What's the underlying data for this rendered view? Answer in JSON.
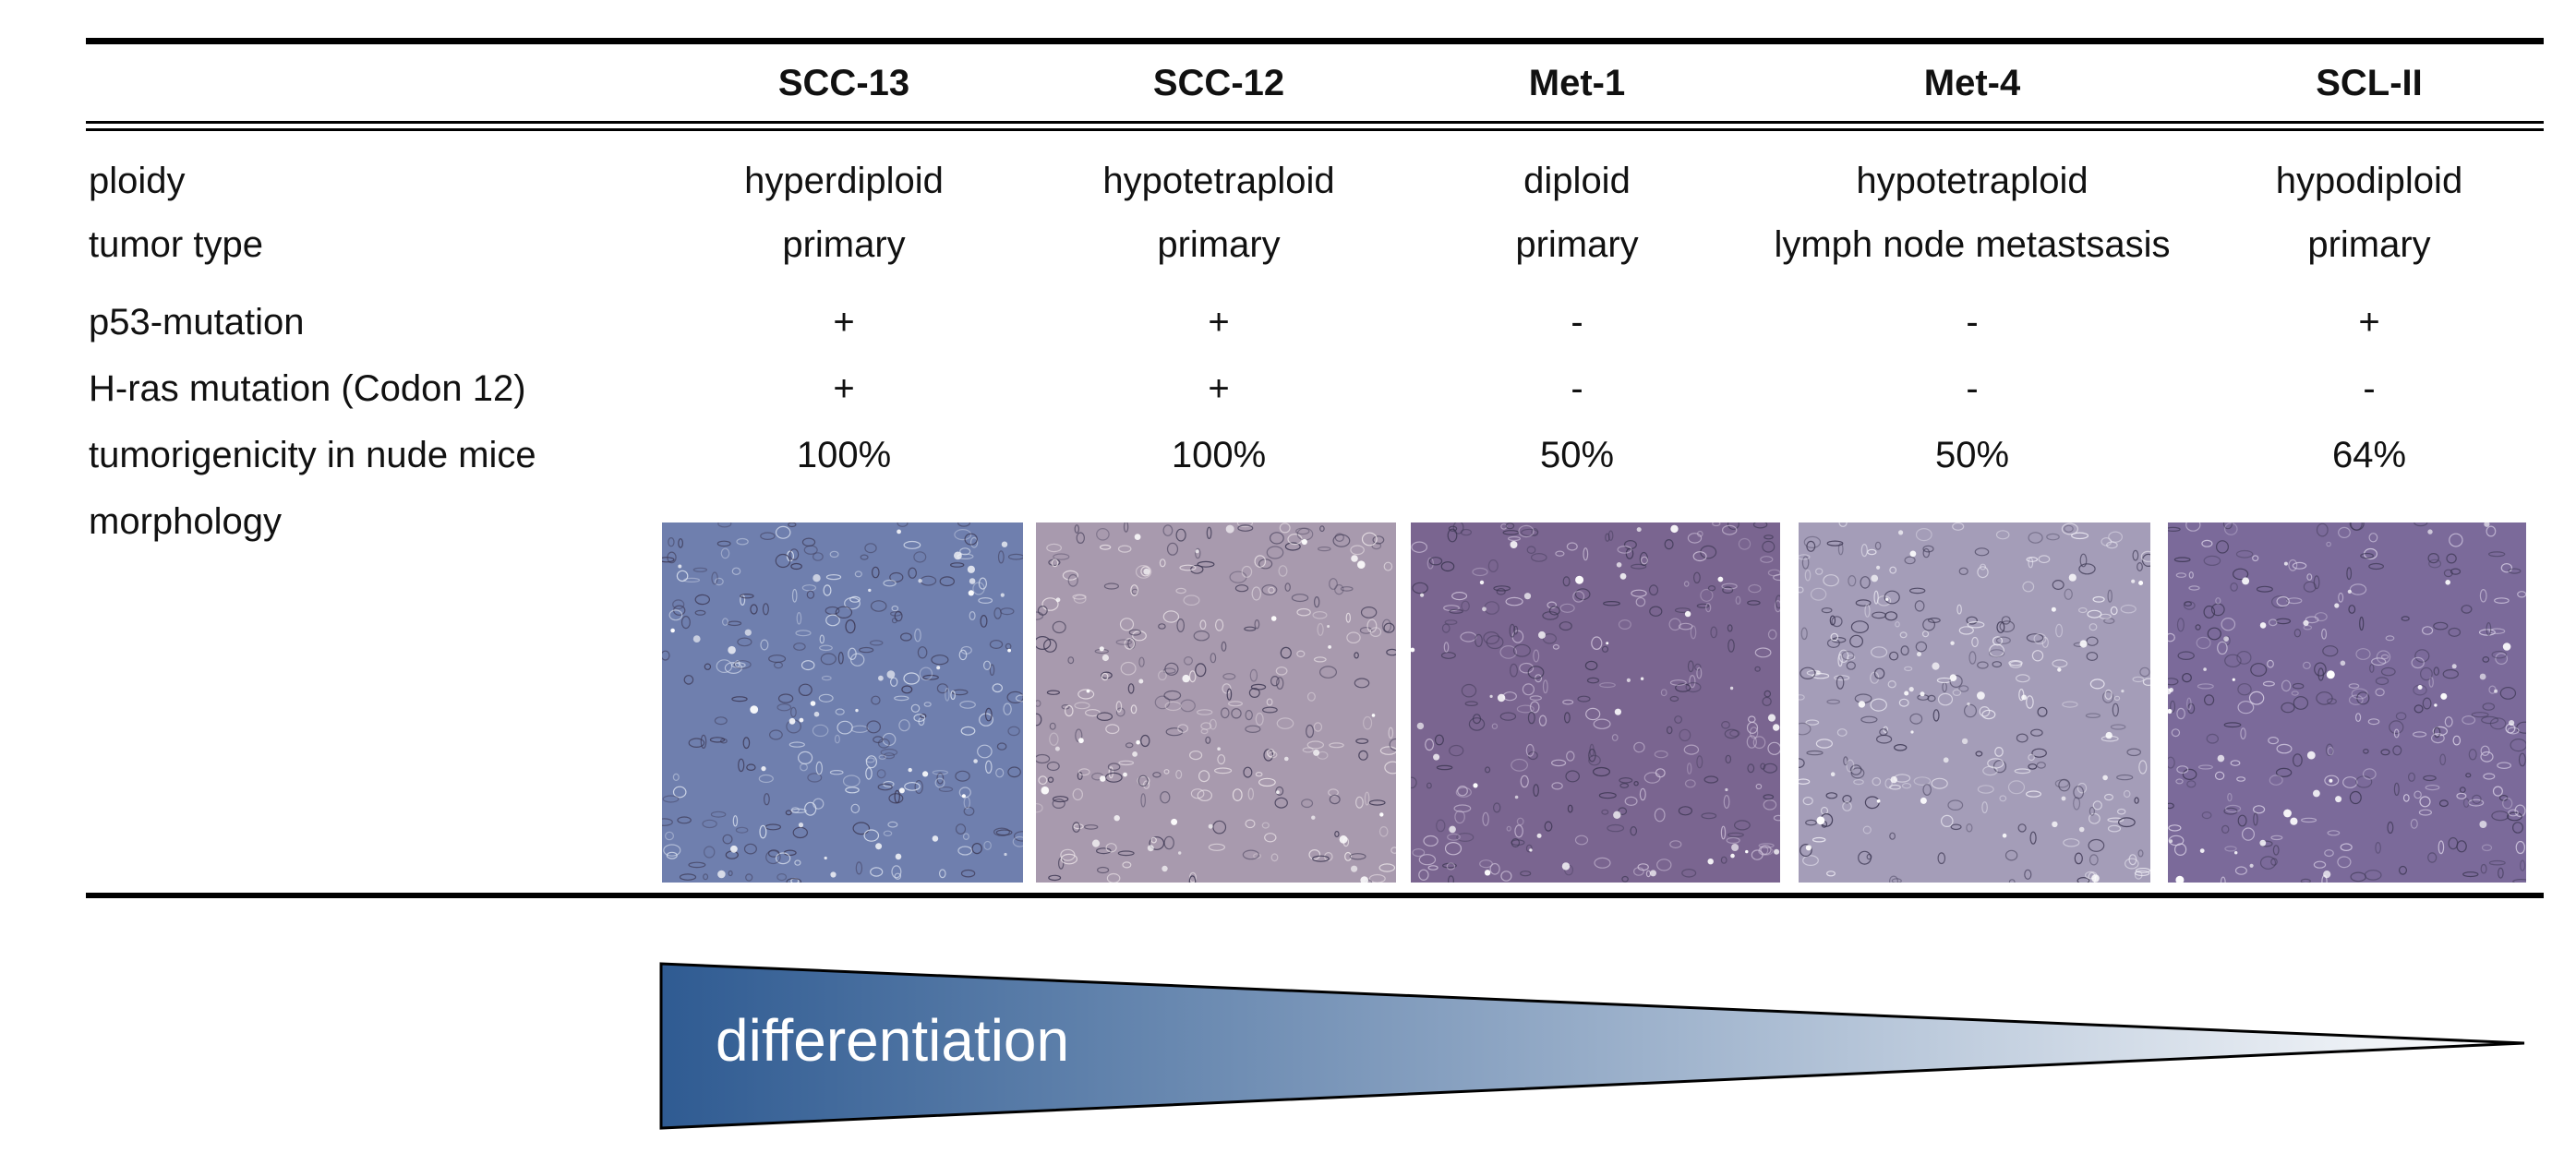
{
  "columns": [
    "SCC-13",
    "SCC-12",
    "Met-1",
    "Met-4",
    "SCL-II"
  ],
  "row_labels": {
    "ploidy": "ploidy",
    "tumor_type": "tumor type",
    "p53": "p53-mutation",
    "hras": "H-ras mutation (Codon 12)",
    "tumorigenicity": "tumorigenicity in nude mice",
    "morphology": "morphology"
  },
  "rows": {
    "ploidy": [
      "hyperdiploid",
      "hypotetraploid",
      "diploid",
      "hypotetraploid",
      "hypodiploid"
    ],
    "tumor_type": [
      "primary",
      "primary",
      "primary",
      "lymph node metastsasis",
      "primary"
    ],
    "p53": [
      "+",
      "+",
      "-",
      "-",
      "+"
    ],
    "hras": [
      "+",
      "+",
      "-",
      "-",
      "-"
    ],
    "tumorigenicity": [
      "100%",
      "100%",
      "50%",
      "50%",
      "64%"
    ]
  },
  "morphology_images": [
    {
      "tint": "#6f7fae",
      "light": "#dfe6f2"
    },
    {
      "tint": "#a89aae",
      "light": "#ede6ea"
    },
    {
      "tint": "#7a6590",
      "light": "#cfc3da"
    },
    {
      "tint": "#a49db8",
      "light": "#efedf5"
    },
    {
      "tint": "#7b6a9a",
      "light": "#d9d1e6"
    }
  ],
  "differentiation": {
    "label": "differentiation",
    "color_start": "#2f5b92",
    "color_end": "#ffffff"
  }
}
